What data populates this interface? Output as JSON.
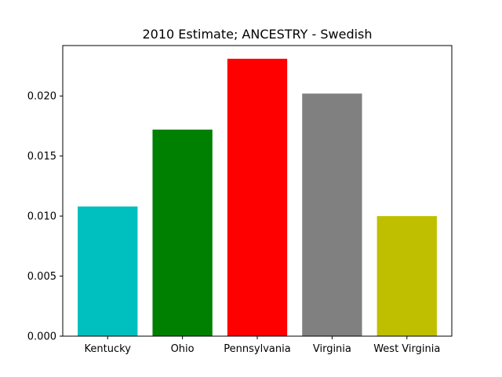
{
  "chart_data": {
    "type": "bar",
    "title": "2010 Estimate; ANCESTRY - Swedish",
    "xlabel": "",
    "ylabel": "",
    "categories": [
      "Kentucky",
      "Ohio",
      "Pennsylvania",
      "Virginia",
      "West Virginia"
    ],
    "values": [
      0.0108,
      0.0172,
      0.0231,
      0.0202,
      0.01
    ],
    "colors": [
      "#00bfbf",
      "#008000",
      "#ff0000",
      "#808080",
      "#bfbf00"
    ],
    "ylim": [
      0,
      0.0242
    ],
    "yticks": [
      "0.000",
      "0.005",
      "0.010",
      "0.015",
      "0.020"
    ],
    "grid": false,
    "legend": "none"
  }
}
